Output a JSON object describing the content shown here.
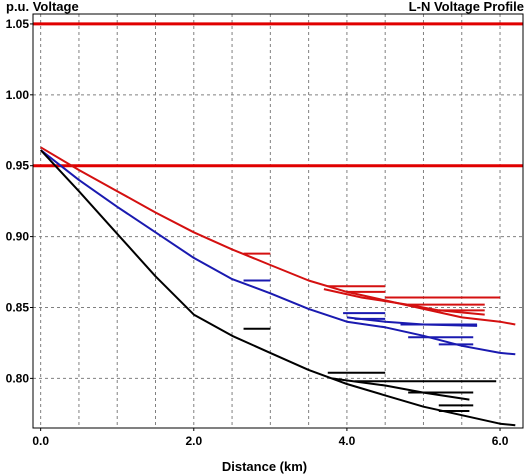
{
  "chart_data": {
    "type": "line",
    "title": "L-N Voltage Profile",
    "ylabel": "p.u. Voltage",
    "xlabel": "Distance (km)",
    "xlim": [
      -0.1,
      6.3
    ],
    "ylim": [
      0.765,
      1.057
    ],
    "x_ticks": [
      0.0,
      2.0,
      4.0,
      6.0
    ],
    "x_tick_labels": [
      "0.0",
      "2.0",
      "4.0",
      "6.0"
    ],
    "y_ticks": [
      0.8,
      0.85,
      0.9,
      0.95,
      1.0,
      1.05
    ],
    "y_tick_labels": [
      "0.80",
      "0.85",
      "0.90",
      "0.95",
      "1.00",
      "1.05"
    ],
    "grid": true,
    "limit_lines": [
      {
        "y": 1.05,
        "color": "#e00000"
      },
      {
        "y": 0.95,
        "color": "#e00000"
      }
    ],
    "series": [
      {
        "color": "#d41010",
        "mains": [
          [
            [
              0.0,
              0.963
            ],
            [
              0.5,
              0.947
            ],
            [
              1.0,
              0.932
            ],
            [
              1.5,
              0.917
            ],
            [
              2.0,
              0.903
            ],
            [
              2.5,
              0.891
            ],
            [
              3.0,
              0.88
            ],
            [
              3.5,
              0.869
            ],
            [
              4.0,
              0.861
            ],
            [
              4.5,
              0.855
            ],
            [
              5.0,
              0.849
            ],
            [
              5.5,
              0.843
            ],
            [
              6.0,
              0.84
            ],
            [
              6.2,
              0.838
            ]
          ],
          [
            [
              3.7,
              0.863
            ],
            [
              4.2,
              0.857
            ],
            [
              4.8,
              0.852
            ],
            [
              5.2,
              0.848
            ],
            [
              5.8,
              0.845
            ]
          ]
        ],
        "laterals": [
          [
            [
              2.65,
              0.888
            ],
            [
              3.0,
              0.888
            ]
          ],
          [
            [
              3.75,
              0.865
            ],
            [
              4.5,
              0.865
            ]
          ],
          [
            [
              4.0,
              0.861
            ],
            [
              4.5,
              0.861
            ]
          ],
          [
            [
              4.5,
              0.857
            ],
            [
              6.0,
              0.857
            ]
          ],
          [
            [
              4.8,
              0.852
            ],
            [
              5.8,
              0.852
            ]
          ],
          [
            [
              5.2,
              0.848
            ],
            [
              5.8,
              0.848
            ]
          ]
        ]
      },
      {
        "color": "#1a1ab0",
        "mains": [
          [
            [
              0.0,
              0.961
            ],
            [
              0.5,
              0.94
            ],
            [
              1.0,
              0.921
            ],
            [
              1.5,
              0.903
            ],
            [
              2.0,
              0.885
            ],
            [
              2.5,
              0.87
            ],
            [
              3.0,
              0.86
            ],
            [
              3.5,
              0.849
            ],
            [
              4.0,
              0.84
            ],
            [
              4.5,
              0.836
            ],
            [
              5.0,
              0.83
            ],
            [
              5.5,
              0.823
            ],
            [
              6.0,
              0.818
            ],
            [
              6.2,
              0.817
            ]
          ],
          [
            [
              4.0,
              0.843
            ],
            [
              4.5,
              0.84
            ],
            [
              5.0,
              0.838
            ],
            [
              5.7,
              0.837
            ]
          ]
        ],
        "laterals": [
          [
            [
              2.65,
              0.869
            ],
            [
              3.0,
              0.869
            ]
          ],
          [
            [
              3.95,
              0.846
            ],
            [
              4.5,
              0.846
            ]
          ],
          [
            [
              4.1,
              0.842
            ],
            [
              4.5,
              0.842
            ]
          ],
          [
            [
              4.7,
              0.838
            ],
            [
              5.7,
              0.838
            ]
          ],
          [
            [
              4.8,
              0.829
            ],
            [
              5.65,
              0.829
            ]
          ],
          [
            [
              5.2,
              0.824
            ],
            [
              5.65,
              0.824
            ]
          ]
        ]
      },
      {
        "color": "#000000",
        "mains": [
          [
            [
              0.0,
              0.961
            ],
            [
              0.5,
              0.932
            ],
            [
              1.0,
              0.902
            ],
            [
              1.5,
              0.872
            ],
            [
              2.0,
              0.845
            ],
            [
              2.5,
              0.83
            ],
            [
              3.0,
              0.818
            ],
            [
              3.5,
              0.806
            ],
            [
              4.0,
              0.796
            ],
            [
              4.5,
              0.788
            ],
            [
              5.0,
              0.78
            ],
            [
              5.5,
              0.774
            ],
            [
              6.0,
              0.768
            ],
            [
              6.2,
              0.767
            ]
          ],
          [
            [
              3.8,
              0.8
            ],
            [
              4.5,
              0.795
            ],
            [
              5.0,
              0.79
            ],
            [
              5.6,
              0.785
            ]
          ]
        ],
        "laterals": [
          [
            [
              2.65,
              0.835
            ],
            [
              3.0,
              0.835
            ]
          ],
          [
            [
              3.75,
              0.804
            ],
            [
              4.5,
              0.804
            ]
          ],
          [
            [
              4.1,
              0.798
            ],
            [
              5.95,
              0.798
            ]
          ],
          [
            [
              4.8,
              0.79
            ],
            [
              5.65,
              0.79
            ]
          ],
          [
            [
              5.2,
              0.781
            ],
            [
              5.65,
              0.781
            ]
          ],
          [
            [
              5.2,
              0.777
            ],
            [
              5.6,
              0.777
            ]
          ]
        ]
      }
    ]
  }
}
